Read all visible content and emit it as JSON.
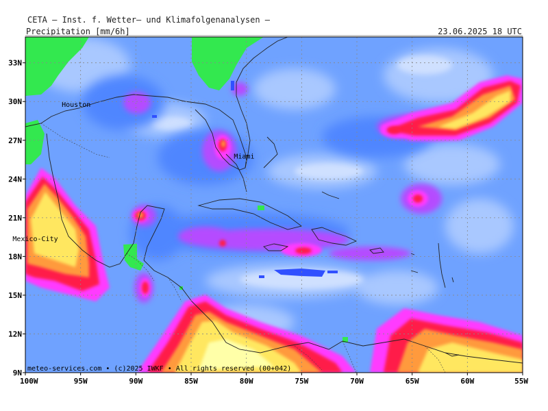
{
  "header": {
    "institute": "CETA – Inst. f. Wetter– und Klimafolgenanalysen –",
    "parameter": "Precipitation [mm/6h]",
    "valid_time": "23.06.2025 18 UTC"
  },
  "map": {
    "lat_range": [
      9,
      35
    ],
    "lon_range": [
      -100,
      -55
    ],
    "lat_ticks": [
      "33N",
      "30N",
      "27N",
      "24N",
      "21N",
      "18N",
      "15N",
      "12N",
      "9N"
    ],
    "lon_ticks": [
      "100W",
      "95W",
      "90W",
      "85W",
      "80W",
      "75W",
      "70W",
      "65W",
      "60W",
      "55W"
    ],
    "cities": [
      {
        "name": "Houston",
        "lat": 29.8,
        "lon": -95.4
      },
      {
        "name": "Miami",
        "lat": 25.8,
        "lon": -80.2
      },
      {
        "name": "Mexico-City",
        "lat": 19.4,
        "lon": -99.1
      }
    ],
    "credit": "meteo-services.com • (c)2025 IWKF • All rights reserved (00+042)"
  },
  "colors": {
    "base": "#6fa2ff",
    "light": "#a9c8ff",
    "lighter": "#cfe0ff",
    "medium": "#4f86ff",
    "purple": "#b54cff",
    "magenta": "#ff3bff",
    "red": "#ff1e4a",
    "orange": "#ff9a3c",
    "yellow": "#ffe760",
    "pale_yellow": "#ffffa8",
    "green": "#33e84f",
    "blue_dry": "#3050ff"
  }
}
